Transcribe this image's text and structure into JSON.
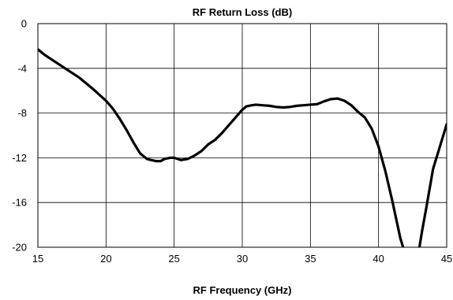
{
  "chart_data": {
    "type": "line",
    "title": "RF Return Loss (dB)",
    "xlabel": "RF Frequency (GHz)",
    "ylabel": "",
    "xlim": [
      15,
      45
    ],
    "ylim": [
      -20,
      0
    ],
    "xticks": [
      15,
      20,
      25,
      30,
      35,
      40,
      45
    ],
    "yticks": [
      0,
      -4,
      -8,
      -12,
      -16,
      -20
    ],
    "grid": true,
    "legend": "none",
    "line_color": "#000000",
    "series": [
      {
        "x": [
          15,
          15.5,
          16,
          17,
          18,
          19,
          20,
          20.5,
          21,
          21.5,
          22,
          22.5,
          23,
          23.3,
          23.7,
          24,
          24.3,
          24.7,
          25,
          25.5,
          26,
          26.5,
          27,
          27.5,
          28,
          28.5,
          29,
          29.5,
          30,
          30.3,
          30.7,
          31,
          31.5,
          32,
          32.5,
          33,
          33.5,
          34,
          34.5,
          35,
          35.5,
          36,
          36.5,
          37,
          37.5,
          38,
          38.5,
          39,
          39.5,
          40,
          40.5,
          41,
          41.3,
          41.6,
          41.8,
          41.9,
          42,
          42.2,
          42.5,
          42.8,
          43,
          43.2,
          43.5,
          44,
          44.5,
          45
        ],
        "y": [
          -2.3,
          -2.8,
          -3.2,
          -4.0,
          -4.8,
          -5.8,
          -6.9,
          -7.6,
          -8.5,
          -9.5,
          -10.6,
          -11.6,
          -12.1,
          -12.2,
          -12.3,
          -12.3,
          -12.1,
          -12.0,
          -12.0,
          -12.2,
          -12.1,
          -11.8,
          -11.4,
          -10.8,
          -10.4,
          -9.8,
          -9.1,
          -8.4,
          -7.7,
          -7.4,
          -7.3,
          -7.25,
          -7.3,
          -7.35,
          -7.45,
          -7.5,
          -7.45,
          -7.35,
          -7.3,
          -7.25,
          -7.2,
          -6.95,
          -6.75,
          -6.7,
          -6.9,
          -7.3,
          -7.9,
          -8.4,
          -9.4,
          -11.0,
          -13.2,
          -15.8,
          -17.5,
          -19.2,
          -20,
          -20.5,
          -21,
          -21.5,
          -21.5,
          -21,
          -20,
          -18.5,
          -16.5,
          -13.0,
          -11.0,
          -9.0
        ]
      }
    ]
  }
}
